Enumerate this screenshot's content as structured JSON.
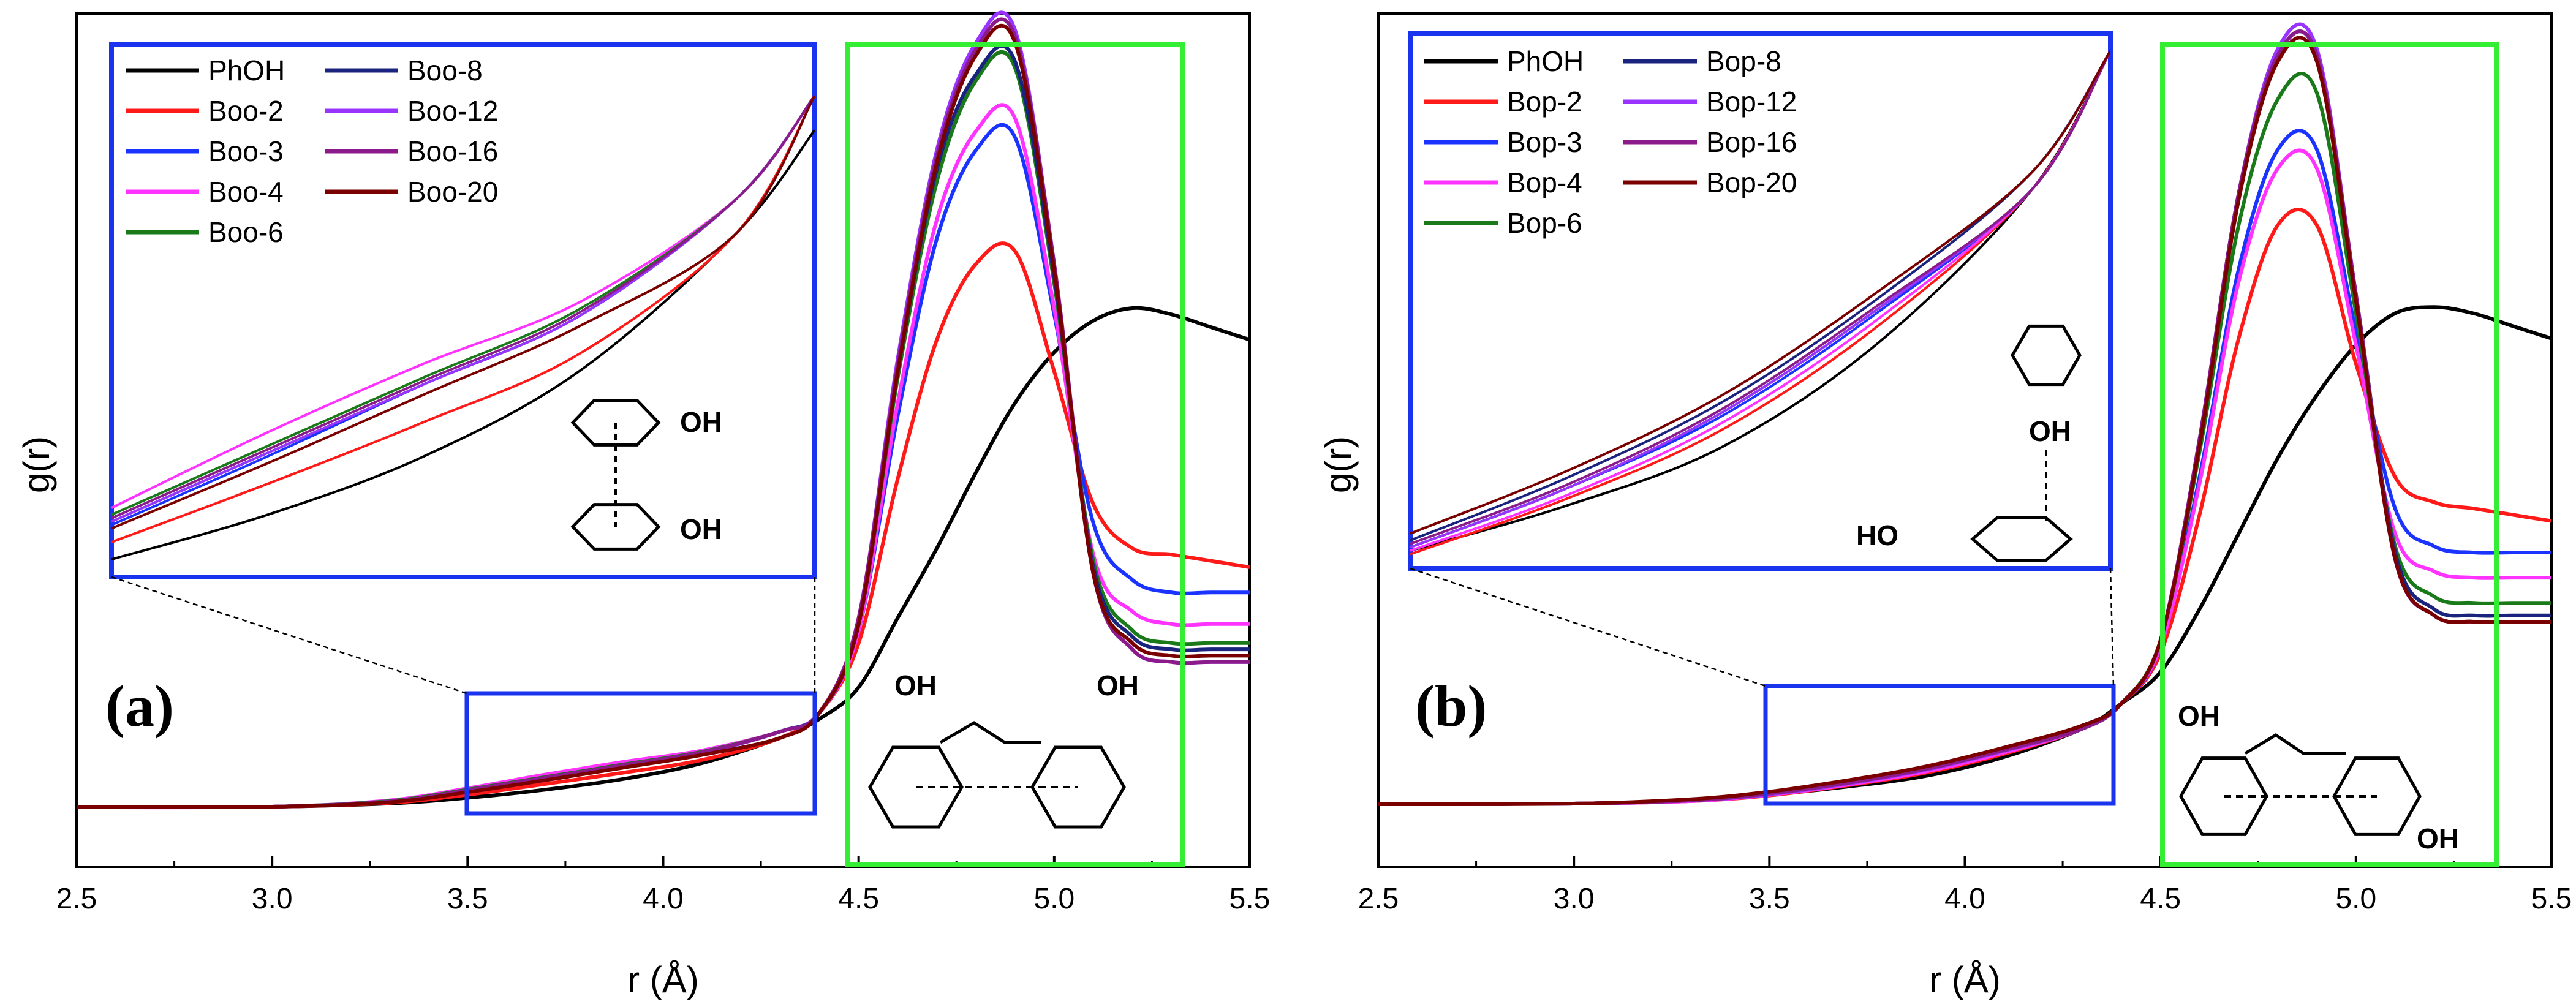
{
  "chart_data": [
    {
      "type": "line",
      "panel_label": "(a)",
      "xlabel": "r (Å)",
      "ylabel": "g(r)",
      "xlim": [
        2.5,
        5.5
      ],
      "ylim": [
        0,
        1.2
      ],
      "xticks": [
        "2.5",
        "3.0",
        "3.5",
        "4.0",
        "4.5",
        "5.0",
        "5.5"
      ],
      "x": [
        2.5,
        3.0,
        3.3,
        3.5,
        3.7,
        3.9,
        4.1,
        4.3,
        4.4,
        4.5,
        4.6,
        4.7,
        4.8,
        4.9,
        5.0,
        5.1,
        5.2,
        5.3,
        5.4,
        5.5
      ],
      "series": [
        {
          "name": "PhOH",
          "color": "#000000",
          "values": [
            0,
            0.001,
            0.006,
            0.015,
            0.028,
            0.045,
            0.07,
            0.11,
            0.14,
            0.19,
            0.3,
            0.41,
            0.53,
            0.64,
            0.72,
            0.77,
            0.79,
            0.78,
            0.76,
            0.74
          ]
        },
        {
          "name": "Boo-2",
          "color": "#ff1a1a",
          "values": [
            0,
            0.001,
            0.007,
            0.02,
            0.037,
            0.055,
            0.075,
            0.11,
            0.15,
            0.26,
            0.52,
            0.74,
            0.86,
            0.88,
            0.69,
            0.48,
            0.41,
            0.4,
            0.39,
            0.38
          ]
        },
        {
          "name": "Boo-3",
          "color": "#1a33ff",
          "values": [
            0,
            0.001,
            0.009,
            0.025,
            0.045,
            0.066,
            0.086,
            0.12,
            0.15,
            0.28,
            0.62,
            0.9,
            1.04,
            1.06,
            0.78,
            0.45,
            0.36,
            0.34,
            0.34,
            0.34
          ]
        },
        {
          "name": "Boo-4",
          "color": "#ff33ff",
          "values": [
            0,
            0.001,
            0.011,
            0.03,
            0.052,
            0.072,
            0.09,
            0.12,
            0.15,
            0.28,
            0.64,
            0.93,
            1.07,
            1.09,
            0.79,
            0.4,
            0.31,
            0.29,
            0.29,
            0.29
          ]
        },
        {
          "name": "Boo-6",
          "color": "#1a7a1a",
          "values": [
            0,
            0.001,
            0.01,
            0.028,
            0.048,
            0.068,
            0.088,
            0.12,
            0.15,
            0.29,
            0.68,
            0.99,
            1.15,
            1.17,
            0.83,
            0.39,
            0.28,
            0.26,
            0.26,
            0.26
          ]
        },
        {
          "name": "Boo-8",
          "color": "#1a237e",
          "values": [
            0,
            0.001,
            0.009,
            0.026,
            0.046,
            0.066,
            0.086,
            0.12,
            0.15,
            0.29,
            0.69,
            1.01,
            1.16,
            1.18,
            0.84,
            0.38,
            0.27,
            0.25,
            0.25,
            0.25
          ]
        },
        {
          "name": "Boo-12",
          "color": "#9933ff",
          "values": [
            0,
            0.001,
            0.009,
            0.026,
            0.046,
            0.066,
            0.086,
            0.12,
            0.15,
            0.3,
            0.71,
            1.04,
            1.21,
            1.23,
            0.86,
            0.37,
            0.25,
            0.23,
            0.23,
            0.23
          ]
        },
        {
          "name": "Boo-16",
          "color": "#8b1a8b",
          "values": [
            0,
            0.001,
            0.009,
            0.027,
            0.047,
            0.067,
            0.087,
            0.12,
            0.15,
            0.3,
            0.7,
            1.03,
            1.2,
            1.22,
            0.86,
            0.37,
            0.25,
            0.23,
            0.23,
            0.23
          ]
        },
        {
          "name": "Boo-20",
          "color": "#7a0000",
          "values": [
            0,
            0.001,
            0.008,
            0.024,
            0.043,
            0.063,
            0.083,
            0.11,
            0.15,
            0.29,
            0.69,
            1.02,
            1.19,
            1.21,
            0.85,
            0.37,
            0.26,
            0.24,
            0.24,
            0.24
          ]
        }
      ],
      "legend_col1": [
        "PhOH",
        "Boo-2",
        "Boo-3",
        "Boo-4",
        "Boo-6"
      ],
      "legend_col2": [
        "Boo-8",
        "Boo-12",
        "Boo-16",
        "Boo-20"
      ],
      "zoom_range": [
        3.5,
        4.4
      ],
      "molecule_labels": [
        "OH",
        "OH",
        "OH",
        "OH"
      ]
    },
    {
      "type": "line",
      "panel_label": "(b)",
      "xlabel": "r (Å)",
      "ylabel": "g(r)",
      "xlim": [
        2.5,
        5.5
      ],
      "ylim": [
        0,
        1.2
      ],
      "xticks": [
        "2.5",
        "3.0",
        "3.5",
        "4.0",
        "4.5",
        "5.0",
        "5.5"
      ],
      "x": [
        2.5,
        3.0,
        3.3,
        3.5,
        3.7,
        3.9,
        4.1,
        4.3,
        4.4,
        4.5,
        4.6,
        4.7,
        4.8,
        4.9,
        5.0,
        5.1,
        5.2,
        5.3,
        5.4,
        5.5
      ],
      "series": [
        {
          "name": "PhOH",
          "color": "#000000",
          "values": [
            0,
            0.001,
            0.006,
            0.015,
            0.028,
            0.045,
            0.075,
            0.12,
            0.16,
            0.21,
            0.31,
            0.43,
            0.55,
            0.65,
            0.73,
            0.78,
            0.79,
            0.78,
            0.76,
            0.74
          ]
        },
        {
          "name": "Bop-2",
          "color": "#ff1a1a",
          "values": [
            0,
            0.001,
            0.005,
            0.014,
            0.03,
            0.05,
            0.08,
            0.12,
            0.16,
            0.24,
            0.46,
            0.74,
            0.92,
            0.92,
            0.7,
            0.52,
            0.48,
            0.47,
            0.46,
            0.45
          ]
        },
        {
          "name": "Bop-3",
          "color": "#1a33ff",
          "values": [
            0,
            0.001,
            0.006,
            0.016,
            0.033,
            0.054,
            0.084,
            0.12,
            0.16,
            0.25,
            0.52,
            0.85,
            1.04,
            1.04,
            0.75,
            0.47,
            0.41,
            0.4,
            0.4,
            0.4
          ]
        },
        {
          "name": "Bop-4",
          "color": "#ff33ff",
          "values": [
            0,
            0.001,
            0.005,
            0.015,
            0.031,
            0.052,
            0.082,
            0.12,
            0.16,
            0.25,
            0.51,
            0.83,
            1.01,
            1.01,
            0.73,
            0.43,
            0.37,
            0.36,
            0.36,
            0.36
          ]
        },
        {
          "name": "Bop-6",
          "color": "#1a7a1a",
          "values": [
            0,
            0.001,
            0.006,
            0.016,
            0.033,
            0.055,
            0.085,
            0.12,
            0.16,
            0.26,
            0.56,
            0.92,
            1.12,
            1.13,
            0.78,
            0.41,
            0.33,
            0.32,
            0.32,
            0.32
          ]
        },
        {
          "name": "Bop-8",
          "color": "#1a237e",
          "values": [
            0,
            0.001,
            0.007,
            0.018,
            0.036,
            0.058,
            0.088,
            0.125,
            0.16,
            0.26,
            0.58,
            0.97,
            1.19,
            1.19,
            0.81,
            0.4,
            0.31,
            0.3,
            0.3,
            0.3
          ]
        },
        {
          "name": "Bop-12",
          "color": "#9933ff",
          "values": [
            0,
            0.001,
            0.006,
            0.016,
            0.033,
            0.055,
            0.085,
            0.12,
            0.16,
            0.26,
            0.58,
            0.97,
            1.2,
            1.2,
            0.81,
            0.39,
            0.3,
            0.29,
            0.29,
            0.29
          ]
        },
        {
          "name": "Bop-16",
          "color": "#8b1a8b",
          "values": [
            0,
            0.001,
            0.006,
            0.017,
            0.034,
            0.056,
            0.086,
            0.12,
            0.16,
            0.26,
            0.58,
            0.97,
            1.19,
            1.19,
            0.81,
            0.39,
            0.3,
            0.29,
            0.29,
            0.29
          ]
        },
        {
          "name": "Bop-20",
          "color": "#7a0000",
          "values": [
            0,
            0.001,
            0.008,
            0.02,
            0.038,
            0.06,
            0.09,
            0.125,
            0.16,
            0.26,
            0.57,
            0.96,
            1.18,
            1.18,
            0.8,
            0.39,
            0.3,
            0.29,
            0.29,
            0.29
          ]
        }
      ],
      "legend_col1": [
        "PhOH",
        "Bop-2",
        "Bop-3",
        "Bop-4",
        "Bop-6"
      ],
      "legend_col2": [
        "Bop-8",
        "Bop-12",
        "Bop-16",
        "Bop-20"
      ],
      "zoom_range": [
        3.5,
        4.4
      ],
      "molecule_labels": [
        "OH",
        "HO",
        "OH",
        "OH"
      ]
    }
  ]
}
